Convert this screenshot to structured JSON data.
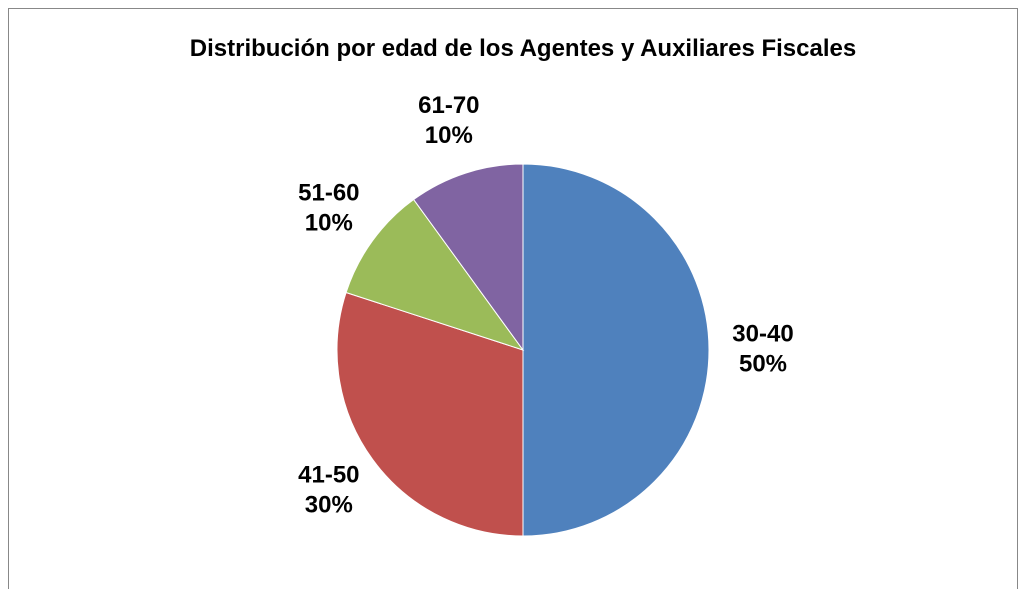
{
  "chart_data": {
    "type": "pie",
    "title": "Distribución por edad de los Agentes y Auxiliares Fiscales",
    "categories": [
      "30-40",
      "41-50",
      "51-60",
      "61-70"
    ],
    "values": [
      50,
      30,
      10,
      10
    ],
    "value_labels": [
      "50%",
      "30%",
      "10%",
      "10%"
    ],
    "colors": [
      "#4f81bd",
      "#c0504d",
      "#9bbb59",
      "#8064a2"
    ]
  }
}
